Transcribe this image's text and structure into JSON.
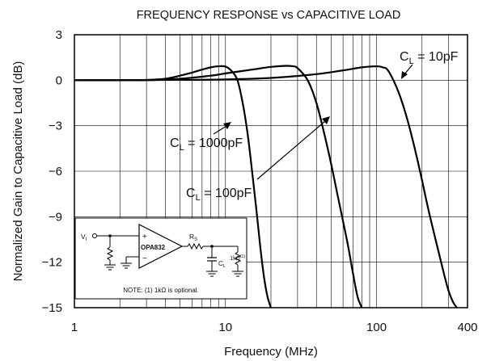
{
  "chart_data": {
    "type": "line",
    "title": "FREQUENCY RESPONSE vs CAPACITIVE LOAD",
    "xlabel": "Frequency (MHz)",
    "ylabel": "Normalized Gain to Capacitive Load (dB)",
    "x_scale": "log",
    "xlim": [
      1,
      400
    ],
    "ylim": [
      -15,
      3
    ],
    "grid": true,
    "x_ticks": [
      1,
      10,
      100,
      400
    ],
    "x_tick_labels": [
      "1",
      "10",
      "100",
      "400"
    ],
    "y_ticks": [
      3,
      0,
      -3,
      -6,
      -9,
      -12,
      -15
    ],
    "y_tick_labels": [
      "3",
      "0",
      "−3",
      "−6",
      "−9",
      "−12",
      "−15"
    ],
    "series": [
      {
        "name": "CL = 1000pF",
        "label_main": "C",
        "label_sub": "L",
        "label_rest": " = 1000pF",
        "x": [
          1,
          2,
          3,
          4,
          5,
          6,
          7,
          8,
          9,
          10,
          11,
          12,
          13,
          14,
          15,
          16,
          17,
          18,
          19,
          20
        ],
        "y": [
          0,
          0,
          0.02,
          0.1,
          0.3,
          0.5,
          0.7,
          0.85,
          0.92,
          0.9,
          0.6,
          0,
          -1.5,
          -3.5,
          -6,
          -8.5,
          -11,
          -13,
          -14.3,
          -15
        ]
      },
      {
        "name": "CL = 100pF",
        "label_main": "C",
        "label_sub": "L",
        "label_rest": " = 100pF",
        "x": [
          1,
          3,
          5,
          8,
          10,
          15,
          20,
          25,
          28,
          30,
          35,
          40,
          45,
          50,
          55,
          60,
          65,
          70,
          75,
          80
        ],
        "y": [
          0,
          0,
          0.1,
          0.3,
          0.45,
          0.7,
          0.88,
          0.95,
          0.92,
          0.8,
          0,
          -1.5,
          -3.5,
          -5.5,
          -7.5,
          -9.3,
          -11,
          -12.8,
          -14.3,
          -15
        ]
      },
      {
        "name": "CL = 10pF",
        "label_main": "C",
        "label_sub": "L",
        "label_rest": " = 10pF",
        "x": [
          1,
          5,
          10,
          20,
          40,
          60,
          80,
          100,
          110,
          120,
          140,
          160,
          180,
          200,
          220,
          250,
          280,
          300,
          320,
          340
        ],
        "y": [
          0,
          0.02,
          0.05,
          0.15,
          0.4,
          0.65,
          0.85,
          0.92,
          0.85,
          0.6,
          -0.8,
          -2.6,
          -4.6,
          -6.6,
          -8.5,
          -10.8,
          -12.8,
          -13.9,
          -14.6,
          -15
        ]
      }
    ],
    "annotations": {
      "label_1000": {
        "target_x": 10.5,
        "target_y": -1.5
      },
      "label_100": {
        "target_x": 45,
        "target_y": -1.8
      },
      "label_10": {
        "target_x": 120,
        "target_y": -0.3
      }
    },
    "inset": {
      "input_label_main": "V",
      "input_label_sub": "I",
      "amp_label": "OPA832",
      "plus_sign": "+",
      "minus_sign": "−",
      "rs_label_main": "R",
      "rs_label_sub": "S",
      "cl_label_main": "C",
      "cl_label_sub": "L",
      "load_label_main": "1kΩ",
      "load_label_sup": "(1)",
      "note": "NOTE: (1) 1kΩ is optional."
    }
  }
}
